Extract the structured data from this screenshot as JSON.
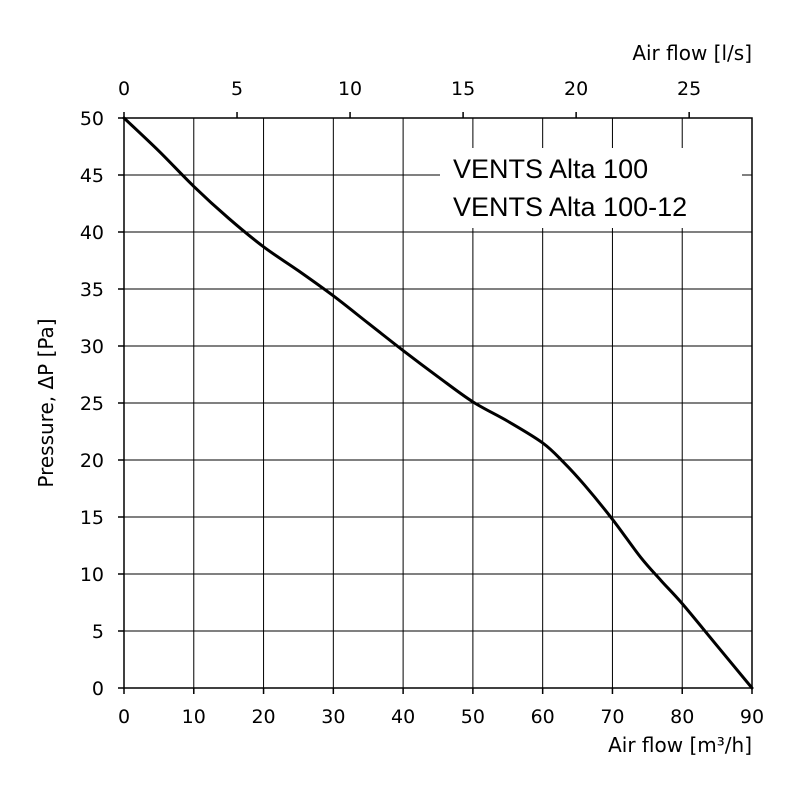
{
  "chart_data": {
    "type": "line",
    "xlabel": "Air flow [m³/h]",
    "x2label": "Air flow [l/s]",
    "ylabel": "Pressure, ΔP [Pa]",
    "xlim": [
      0,
      90
    ],
    "x2lim": [
      0,
      27.78
    ],
    "ylim": [
      0,
      50
    ],
    "xticks": [
      "0",
      "10",
      "20",
      "30",
      "40",
      "50",
      "60",
      "70",
      "80",
      "90"
    ],
    "x2ticks": [
      "0",
      "5",
      "10",
      "15",
      "20",
      "25"
    ],
    "yticks": [
      "0",
      "5",
      "10",
      "15",
      "20",
      "25",
      "30",
      "35",
      "40",
      "45",
      "50"
    ],
    "grid": true,
    "legend": [
      "VENTS Alta 100",
      "VENTS Alta 100-12"
    ],
    "legend_position": "top-right",
    "series": [
      {
        "color": "#000000",
        "x": [
          0,
          5,
          10,
          15,
          20,
          25,
          30,
          35,
          40,
          45,
          50,
          55,
          60,
          63,
          66,
          70,
          74,
          77,
          80,
          85,
          90
        ],
        "y": [
          50,
          47.1,
          44.0,
          41.2,
          38.7,
          36.6,
          34.4,
          32.0,
          29.6,
          27.3,
          25.1,
          23.4,
          21.5,
          19.8,
          17.8,
          14.8,
          11.5,
          9.4,
          7.4,
          3.7,
          0
        ]
      }
    ]
  }
}
